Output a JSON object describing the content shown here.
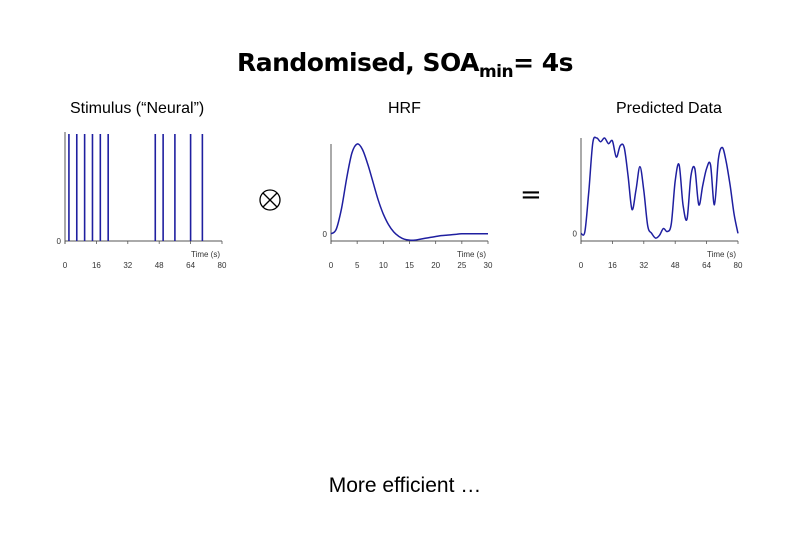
{
  "title": {
    "main": "Randomised, SOA",
    "sub": "min",
    "tail": "= 4s"
  },
  "operators": {
    "convolve": "⊗",
    "equals": "="
  },
  "footer": "More efficient …",
  "colors": {
    "trace": "#1f1fa0",
    "axis": "#555555"
  },
  "chart_data": [
    {
      "type": "line",
      "title": "Stimulus (“Neural”)",
      "xlabel": "Time (s)",
      "ylabel": "",
      "xlim": [
        0,
        80
      ],
      "xticks": [
        "0",
        "16",
        "32",
        "48",
        "64",
        "80"
      ],
      "yticks": [
        "0"
      ],
      "events": [
        2,
        6,
        10,
        14,
        18,
        22,
        46,
        50,
        56,
        64,
        70
      ],
      "event_height": 1
    },
    {
      "type": "line",
      "title": "HRF",
      "xlabel": "Time (s)",
      "ylabel": "",
      "xlim": [
        0,
        30
      ],
      "xticks": [
        "0",
        "5",
        "10",
        "15",
        "20",
        "25",
        "30"
      ],
      "yticks": [
        "0"
      ],
      "x": [
        0,
        1,
        2,
        3,
        4,
        5,
        6,
        7,
        8,
        9,
        10,
        11,
        12,
        13,
        14,
        15,
        16,
        17,
        18,
        19,
        20,
        21,
        22,
        23,
        24,
        25,
        26,
        27,
        28,
        29,
        30
      ],
      "values": [
        0.0,
        0.05,
        0.28,
        0.62,
        0.9,
        1.0,
        0.94,
        0.78,
        0.58,
        0.38,
        0.22,
        0.1,
        0.02,
        -0.03,
        -0.06,
        -0.07,
        -0.07,
        -0.06,
        -0.05,
        -0.04,
        -0.03,
        -0.02,
        -0.015,
        -0.01,
        -0.005,
        0.0,
        0.0,
        0.0,
        0.0,
        0.0,
        0.0
      ]
    },
    {
      "type": "line",
      "title": "Predicted Data",
      "xlabel": "Time (s)",
      "ylabel": "",
      "xlim": [
        0,
        80
      ],
      "xticks": [
        "0",
        "16",
        "32",
        "48",
        "64",
        "80"
      ],
      "yticks": [
        "0"
      ],
      "x": [
        0,
        2,
        4,
        6,
        8,
        10,
        12,
        14,
        16,
        18,
        20,
        22,
        24,
        26,
        28,
        30,
        32,
        34,
        36,
        38,
        40,
        42,
        44,
        46,
        48,
        50,
        52,
        54,
        56,
        58,
        60,
        62,
        64,
        66,
        68,
        70,
        72,
        74,
        76,
        78,
        80
      ],
      "values": [
        0.0,
        0.02,
        0.45,
        0.95,
        1.0,
        0.96,
        1.0,
        0.94,
        0.97,
        0.8,
        0.92,
        0.9,
        0.6,
        0.25,
        0.45,
        0.7,
        0.45,
        0.08,
        0.0,
        -0.05,
        -0.02,
        0.05,
        0.02,
        0.1,
        0.55,
        0.72,
        0.3,
        0.15,
        0.6,
        0.68,
        0.3,
        0.5,
        0.68,
        0.72,
        0.3,
        0.78,
        0.9,
        0.75,
        0.5,
        0.2,
        0.0
      ]
    }
  ]
}
